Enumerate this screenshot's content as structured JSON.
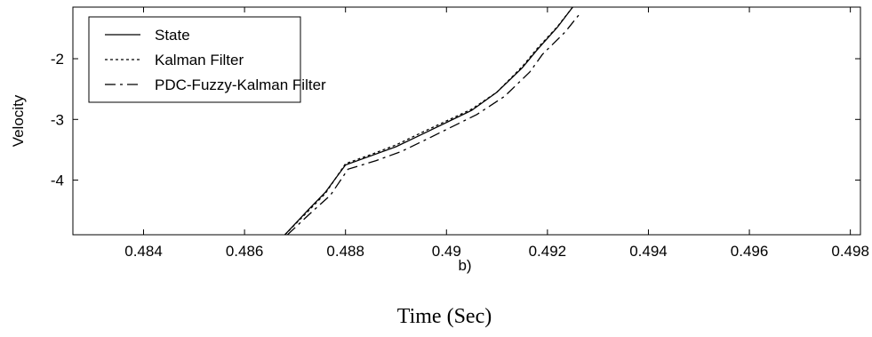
{
  "chart_data": {
    "type": "line",
    "title": "",
    "subtitle": "b)",
    "xlabel": "Time (Sec)",
    "ylabel": "Velocity",
    "xlim": [
      0.4826,
      0.4982
    ],
    "ylim": [
      -4.9,
      -1.15
    ],
    "xticks": [
      0.484,
      0.486,
      0.488,
      0.49,
      0.492,
      0.494,
      0.496,
      0.498
    ],
    "xtick_labels": [
      "0.484",
      "0.486",
      "0.488",
      "0.49",
      "0.492",
      "0.494",
      "0.496",
      "0.498"
    ],
    "yticks": [
      -4,
      -3,
      -2
    ],
    "ytick_labels": [
      "-4",
      "-3",
      "-2"
    ],
    "grid": false,
    "legend_position": "top-left",
    "series": [
      {
        "name": "State",
        "style": "solid",
        "color": "#000000",
        "x": [
          0.4868,
          0.48725,
          0.4876,
          0.488,
          0.4885,
          0.489,
          0.4895,
          0.4905,
          0.491,
          0.4915,
          0.4918,
          0.4922,
          0.4925
        ],
        "y": [
          -4.9,
          -4.5,
          -4.2,
          -3.75,
          -3.6,
          -3.45,
          -3.25,
          -2.85,
          -2.55,
          -2.15,
          -1.85,
          -1.48,
          -1.15
        ]
      },
      {
        "name": "Kalman Filter",
        "style": "dotted",
        "color": "#000000",
        "x": [
          0.4868,
          0.48725,
          0.4876,
          0.488,
          0.4885,
          0.489,
          0.4895,
          0.4905,
          0.491,
          0.4915,
          0.4918,
          0.4922,
          0.4925
        ],
        "y": [
          -4.9,
          -4.52,
          -4.22,
          -3.73,
          -3.58,
          -3.42,
          -3.22,
          -2.83,
          -2.55,
          -2.13,
          -1.83,
          -1.47,
          -1.15
        ]
      },
      {
        "name": "PDC-Fuzzy-Kalman Filter",
        "style": "dashdot",
        "color": "#000000",
        "x": [
          0.48685,
          0.4873,
          0.4877,
          0.48805,
          0.4886,
          0.4891,
          0.4896,
          0.4906,
          0.49115,
          0.49165,
          0.4919,
          0.49235,
          0.49265
        ],
        "y": [
          -4.9,
          -4.55,
          -4.25,
          -3.82,
          -3.68,
          -3.53,
          -3.33,
          -2.92,
          -2.62,
          -2.22,
          -1.93,
          -1.56,
          -1.25
        ]
      }
    ]
  }
}
